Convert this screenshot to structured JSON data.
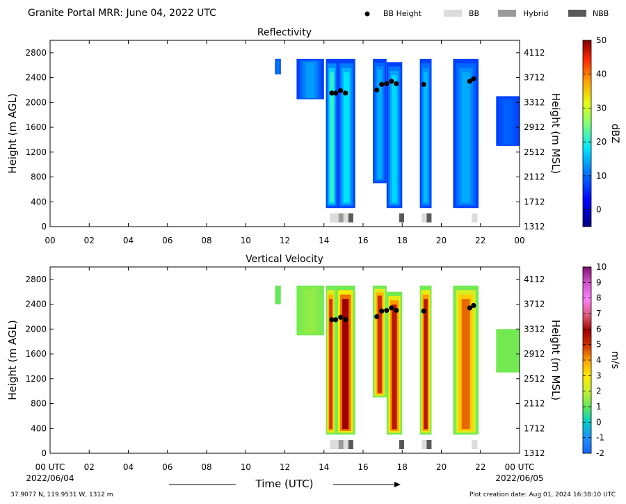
{
  "header": {
    "title": "Granite Portal MRR:  June 04, 2022 UTC",
    "legend": [
      {
        "label": "BB Height",
        "marker": "dot",
        "color": "#000000"
      },
      {
        "label": "BB",
        "marker": "box",
        "color": "#dcdcdc"
      },
      {
        "label": "Hybrid",
        "marker": "box",
        "color": "#9a9a9a"
      },
      {
        "label": "NBB",
        "marker": "box",
        "color": "#595959"
      }
    ]
  },
  "footer": {
    "location": "37.9077 N, 119.9531 W, 1312 m",
    "created": "Plot creation date: Aug 01, 2024 16:38:10 UTC",
    "xlabel": "Time (UTC)",
    "start_tick": "00 UTC",
    "start_date": "2022/06/04",
    "end_tick": "00 UTC",
    "end_date": "2022/06/05"
  },
  "chart_data": [
    {
      "type": "heatmap",
      "title": "Reflectivity",
      "ylabel": "Height (m AGL)",
      "y2label": "Height (m MSL)",
      "colorbar_label": "dBZ",
      "xlim": [
        0,
        24
      ],
      "ylim": [
        0,
        3000
      ],
      "x_ticks": [
        "00",
        "02",
        "04",
        "06",
        "08",
        "10",
        "12",
        "14",
        "16",
        "18",
        "20",
        "22",
        "00"
      ],
      "y_ticks": [
        0,
        400,
        800,
        1200,
        1600,
        2000,
        2400,
        2800
      ],
      "y2_ticks": [
        "1312",
        "1712",
        "2112",
        "2512",
        "2912",
        "3312",
        "3712",
        "4112"
      ],
      "colorbar": {
        "min": -5,
        "max": 50,
        "ticks": [
          "0",
          "10",
          "20",
          "30",
          "40",
          "50"
        ]
      },
      "echo_columns": [
        {
          "start": 11.5,
          "end": 11.8,
          "top": 2700,
          "bottom": 2450,
          "core": 8
        },
        {
          "start": 12.6,
          "end": 14.0,
          "top": 2700,
          "bottom": 2050,
          "core": 10
        },
        {
          "start": 14.1,
          "end": 14.7,
          "top": 2700,
          "bottom": 300,
          "core": 18
        },
        {
          "start": 14.7,
          "end": 15.6,
          "top": 2700,
          "bottom": 300,
          "core": 15
        },
        {
          "start": 16.5,
          "end": 17.2,
          "top": 2700,
          "bottom": 700,
          "core": 11
        },
        {
          "start": 17.2,
          "end": 18.0,
          "top": 2650,
          "bottom": 300,
          "core": 14
        },
        {
          "start": 18.9,
          "end": 19.5,
          "top": 2700,
          "bottom": 300,
          "core": 12
        },
        {
          "start": 20.6,
          "end": 21.9,
          "top": 2700,
          "bottom": 300,
          "core": 11
        },
        {
          "start": 22.8,
          "end": 24.0,
          "top": 2100,
          "bottom": 1300,
          "core": 6
        }
      ],
      "bb_height": {
        "times": [
          14.4,
          14.6,
          14.85,
          15.1,
          16.7,
          16.95,
          17.2,
          17.45,
          17.7,
          19.1,
          21.45,
          21.65
        ],
        "heights": [
          2150,
          2150,
          2190,
          2150,
          2200,
          2290,
          2300,
          2340,
          2300,
          2290,
          2340,
          2380
        ]
      },
      "bb_class": [
        {
          "start": 14.3,
          "end": 14.75,
          "class": "BB"
        },
        {
          "start": 14.75,
          "end": 15.0,
          "class": "Hybrid"
        },
        {
          "start": 15.0,
          "end": 15.25,
          "class": "BB"
        },
        {
          "start": 15.25,
          "end": 15.5,
          "class": "NBB"
        },
        {
          "start": 17.85,
          "end": 18.1,
          "class": "NBB"
        },
        {
          "start": 19.0,
          "end": 19.25,
          "class": "BB"
        },
        {
          "start": 19.25,
          "end": 19.5,
          "class": "NBB"
        },
        {
          "start": 21.55,
          "end": 21.85,
          "class": "BB"
        }
      ]
    },
    {
      "type": "heatmap",
      "title": "Vertical Velocity",
      "ylabel": "Height (m AGL)",
      "y2label": "Height (m MSL)",
      "colorbar_label": "m/s",
      "xlim": [
        0,
        24
      ],
      "ylim": [
        0,
        3000
      ],
      "x_ticks": [
        "",
        "02",
        "04",
        "06",
        "08",
        "10",
        "12",
        "14",
        "16",
        "18",
        "20",
        "22",
        ""
      ],
      "y_ticks": [
        0,
        400,
        800,
        1200,
        1600,
        2000,
        2400,
        2800
      ],
      "y2_ticks": [
        "1312",
        "1712",
        "2112",
        "2512",
        "2912",
        "3312",
        "3712",
        "4112"
      ],
      "colorbar": {
        "min": -2,
        "max": 10,
        "ticks": [
          "-2",
          "-1",
          "0",
          "1",
          "2",
          "3",
          "4",
          "5",
          "6",
          "7",
          "8",
          "9",
          "10"
        ]
      },
      "echo_columns": [
        {
          "start": 11.5,
          "end": 11.8,
          "top": 2700,
          "bottom": 2400,
          "core": 1.0
        },
        {
          "start": 12.6,
          "end": 14.0,
          "top": 2700,
          "bottom": 1900,
          "core": 1.5
        },
        {
          "start": 14.1,
          "end": 14.6,
          "top": 2700,
          "bottom": 300,
          "core": 5.0
        },
        {
          "start": 14.6,
          "end": 15.6,
          "top": 2700,
          "bottom": 300,
          "core": 6.0
        },
        {
          "start": 16.5,
          "end": 17.2,
          "top": 2700,
          "bottom": 900,
          "core": 5.0
        },
        {
          "start": 17.2,
          "end": 18.0,
          "top": 2600,
          "bottom": 300,
          "core": 5.5
        },
        {
          "start": 18.9,
          "end": 19.5,
          "top": 2700,
          "bottom": 300,
          "core": 5.5
        },
        {
          "start": 20.6,
          "end": 21.9,
          "top": 2700,
          "bottom": 300,
          "core": 4.5
        },
        {
          "start": 22.8,
          "end": 24.0,
          "top": 2000,
          "bottom": 1300,
          "core": 1.2
        }
      ],
      "bb_height": {
        "times": [
          14.4,
          14.6,
          14.85,
          15.1,
          16.7,
          16.95,
          17.2,
          17.45,
          17.7,
          19.1,
          21.45,
          21.65
        ],
        "heights": [
          2150,
          2150,
          2190,
          2150,
          2200,
          2290,
          2300,
          2340,
          2300,
          2290,
          2340,
          2380
        ]
      },
      "bb_class": [
        {
          "start": 14.3,
          "end": 14.75,
          "class": "BB"
        },
        {
          "start": 14.75,
          "end": 15.0,
          "class": "Hybrid"
        },
        {
          "start": 15.0,
          "end": 15.25,
          "class": "BB"
        },
        {
          "start": 15.25,
          "end": 15.5,
          "class": "NBB"
        },
        {
          "start": 17.85,
          "end": 18.1,
          "class": "NBB"
        },
        {
          "start": 19.0,
          "end": 19.25,
          "class": "BB"
        },
        {
          "start": 19.25,
          "end": 19.5,
          "class": "NBB"
        },
        {
          "start": 21.55,
          "end": 21.85,
          "class": "BB"
        }
      ]
    }
  ]
}
